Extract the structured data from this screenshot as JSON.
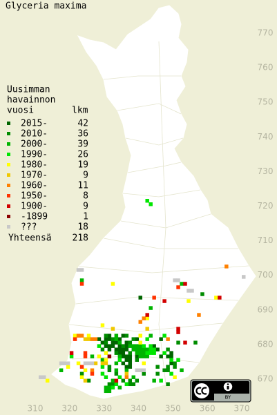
{
  "map": {
    "title": "Glyceria maxima",
    "legend": {
      "heading": [
        "Uusimman",
        "havainnon",
        "vuosi"
      ],
      "count_heading": "lkm",
      "items": [
        {
          "label": "2015-",
          "count": 42,
          "color": "#006400",
          "squares": [
            [
              331,
              682
            ],
            [
              335,
              682
            ],
            [
              328,
              681
            ],
            [
              330,
              681
            ],
            [
              331,
              681
            ],
            [
              334,
              681
            ],
            [
              339,
              681
            ],
            [
              346,
              681
            ],
            [
              329,
              680
            ],
            [
              332,
              680
            ],
            [
              333,
              680
            ],
            [
              336,
              680
            ],
            [
              330,
              679
            ],
            [
              331,
              679
            ],
            [
              332,
              679
            ],
            [
              334,
              679
            ],
            [
              336,
              679
            ],
            [
              344,
              679
            ],
            [
              331,
              678
            ],
            [
              333,
              678
            ],
            [
              334,
              678
            ],
            [
              335,
              678
            ],
            [
              336,
              678
            ],
            [
              345,
              678
            ],
            [
              334,
              677
            ],
            [
              335,
              677
            ],
            [
              349,
              677
            ],
            [
              335,
              676
            ],
            [
              336,
              676
            ],
            [
              337,
              676
            ],
            [
              339,
              676
            ],
            [
              346,
              676
            ],
            [
              348,
              676
            ],
            [
              349,
              676
            ],
            [
              336,
              675
            ],
            [
              337,
              675
            ],
            [
              335,
              674
            ],
            [
              337,
              674
            ],
            [
              349,
              674
            ],
            [
              336,
              673
            ],
            [
              337,
              673
            ],
            [
              340,
              693
            ]
          ]
        },
        {
          "label": "2010-",
          "count": 36,
          "color": "#008c00",
          "squares": [
            [
              330,
              682
            ],
            [
              336,
              682
            ],
            [
              332,
              681
            ],
            [
              338,
              681
            ],
            [
              330,
              680
            ],
            [
              337,
              680
            ],
            [
              351,
              680
            ],
            [
              356,
              680
            ],
            [
              335,
              679
            ],
            [
              329,
              678
            ],
            [
              348,
              678
            ],
            [
              333,
              677
            ],
            [
              337,
              677
            ],
            [
              339,
              675
            ],
            [
              350,
              674
            ],
            [
              331,
              673
            ],
            [
              345,
              673
            ],
            [
              348,
              673
            ],
            [
              350,
              673
            ],
            [
              331,
              672
            ],
            [
              347,
              672
            ],
            [
              348,
              672
            ],
            [
              323,
              671
            ],
            [
              333,
              671
            ],
            [
              341,
              671
            ],
            [
              345,
              671
            ],
            [
              325,
              669
            ],
            [
              335,
              669
            ],
            [
              337,
              669
            ],
            [
              339,
              669
            ],
            [
              331,
              668
            ],
            [
              332,
              668
            ],
            [
              337,
              668
            ],
            [
              338,
              668
            ],
            [
              348,
              668
            ],
            [
              358,
              694
            ]
          ]
        },
        {
          "label": "2000-",
          "count": 39,
          "color": "#00b400",
          "squares": [
            [
              333,
              682
            ],
            [
              343,
              682
            ],
            [
              333,
              681
            ],
            [
              334,
              680
            ],
            [
              337,
              679
            ],
            [
              338,
              678
            ],
            [
              342,
              678
            ],
            [
              339,
              677
            ],
            [
              326,
              676
            ],
            [
              334,
              676
            ],
            [
              329,
              675
            ],
            [
              333,
              674
            ],
            [
              317,
              672
            ],
            [
              333,
              672
            ],
            [
              336,
              672
            ],
            [
              352,
              672
            ],
            [
              338,
              670
            ],
            [
              332,
              669
            ],
            [
              344,
              669
            ],
            [
              323,
              698
            ],
            [
              352,
              697
            ],
            [
              343,
              690
            ],
            [
              330,
              667
            ],
            [
              331,
              667
            ],
            [
              334,
              667
            ],
            [
              330,
              666
            ],
            [
              331,
              666
            ],
            [
              339,
              678
            ],
            [
              340,
              678
            ],
            [
              338,
              679
            ],
            [
              339,
              679
            ],
            [
              340,
              679
            ],
            [
              341,
              678
            ],
            [
              340,
              677
            ],
            [
              341,
              677
            ],
            [
              342,
              677
            ],
            [
              340,
              676
            ],
            [
              341,
              676
            ],
            [
              342,
              676
            ]
          ]
        },
        {
          "label": "1990-",
          "count": 26,
          "color": "#00e600",
          "squares": [
            [
              347,
              682
            ],
            [
              342,
              681
            ],
            [
              328,
              679
            ],
            [
              341,
              679
            ],
            [
              343,
              679
            ],
            [
              342,
              677
            ],
            [
              347,
              677
            ],
            [
              320,
              676
            ],
            [
              334,
              675
            ],
            [
              349,
              675
            ],
            [
              351,
              675
            ],
            [
              329,
              673
            ],
            [
              329,
              671
            ],
            [
              349,
              671
            ],
            [
              330,
              670
            ],
            [
              334,
              670
            ],
            [
              346,
              669
            ],
            [
              333,
              668
            ],
            [
              336,
              668
            ],
            [
              332,
              667
            ],
            [
              342,
              721
            ],
            [
              343,
              720
            ],
            [
              343,
              678
            ],
            [
              344,
              678
            ],
            [
              343,
              677
            ],
            [
              344,
              677
            ]
          ]
        },
        {
          "label": "1980-",
          "count": 19,
          "color": "#ffff00",
          "squares": [
            [
              340,
              682
            ],
            [
              321,
              682
            ],
            [
              325,
              682
            ],
            [
              340,
              680
            ],
            [
              330,
              677
            ],
            [
              328,
              676
            ],
            [
              330,
              675
            ],
            [
              322,
              674
            ],
            [
              341,
              674
            ],
            [
              319,
              673
            ],
            [
              324,
              672
            ],
            [
              323,
              670
            ],
            [
              350,
              670
            ],
            [
              313,
              669
            ],
            [
              332,
              697
            ],
            [
              362,
              693
            ],
            [
              354,
              692
            ],
            [
              342,
              687
            ],
            [
              329,
              685
            ]
          ]
        },
        {
          "label": "1970-",
          "count": 9,
          "color": "#f0c800",
          "squares": [
            [
              324,
              681
            ],
            [
              327,
              674
            ],
            [
              324,
              669
            ],
            [
              336,
              671
            ],
            [
              332,
              684
            ],
            [
              342,
              684
            ],
            [
              330,
              674
            ],
            [
              329,
              674
            ],
            [
              325,
              681
            ]
          ]
        },
        {
          "label": "1960-",
          "count": 11,
          "color": "#ff8000",
          "squares": [
            [
              323,
              682
            ],
            [
              326,
              681
            ],
            [
              348,
              681
            ],
            [
              326,
              672
            ],
            [
              365,
              702
            ],
            [
              341,
              687
            ],
            [
              340,
              686
            ],
            [
              357,
              688
            ],
            [
              327,
              681
            ],
            [
              322,
              682
            ],
            [
              336,
              670
            ]
          ]
        },
        {
          "label": "1950-",
          "count": 8,
          "color": "#ff3200",
          "squares": [
            [
              321,
              681
            ],
            [
              324,
              677
            ],
            [
              323,
              673
            ],
            [
              323,
              697
            ],
            [
              351,
              696
            ],
            [
              344,
              693
            ],
            [
              326,
              671
            ],
            [
              324,
              676
            ]
          ]
        },
        {
          "label": "1900-",
          "count": 9,
          "color": "#d20000",
          "squares": [
            [
              320,
              677
            ],
            [
              353,
              680
            ],
            [
              333,
              669
            ],
            [
              353,
              697
            ],
            [
              363,
              693
            ],
            [
              347,
              692
            ],
            [
              342,
              688
            ],
            [
              351,
              684
            ],
            [
              351,
              683
            ]
          ]
        },
        {
          "label": "-1899",
          "count": 1,
          "color": "#8c0000",
          "squares": [
            [
              331,
              676
            ]
          ]
        },
        {
          "label": "???",
          "count": 18,
          "color": "#c8c8c8",
          "squares": [
            [
              318,
              674
            ],
            [
              325,
              674
            ],
            [
              340,
              672
            ],
            [
              312,
              670
            ],
            [
              323,
              701
            ],
            [
              370,
              699
            ],
            [
              351,
              698
            ],
            [
              354,
              695
            ],
            [
              317,
              674
            ],
            [
              326,
              674
            ],
            [
              339,
              672
            ],
            [
              311,
              670
            ],
            [
              322,
              701
            ],
            [
              350,
              698
            ],
            [
              355,
              695
            ],
            [
              324,
              674
            ],
            [
              319,
              674
            ],
            [
              341,
              672
            ]
          ]
        }
      ],
      "total_label": "Yhteensä",
      "total": 218
    },
    "xticks": [
      310,
      320,
      330,
      340,
      350,
      360,
      370
    ],
    "yticks": [
      770,
      760,
      750,
      740,
      730,
      720,
      710,
      700,
      690,
      680,
      670
    ],
    "license": "BY"
  }
}
